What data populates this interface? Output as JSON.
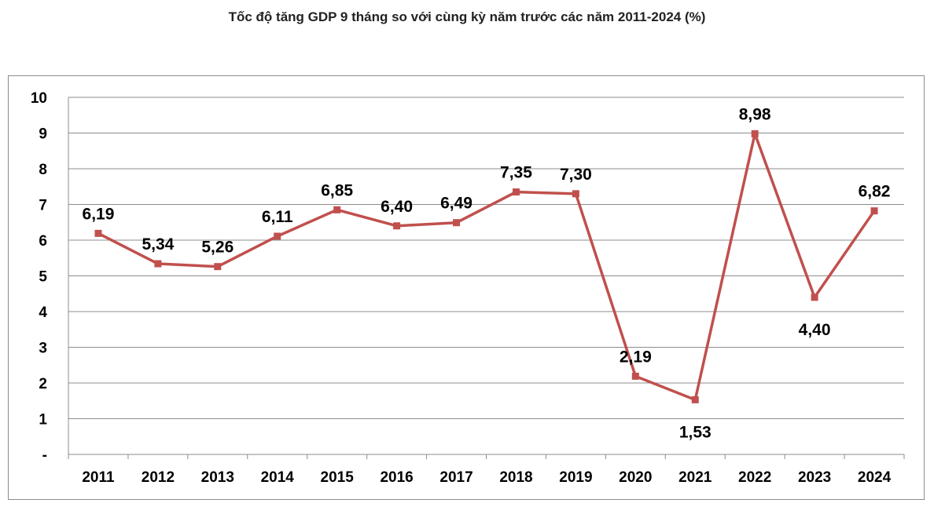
{
  "chart_data": {
    "type": "line",
    "title": "Tốc độ tăng GDP 9 tháng so với cùng kỳ năm trước các năm 2011-2024 (%)",
    "categories": [
      "2011",
      "2012",
      "2013",
      "2014",
      "2015",
      "2016",
      "2017",
      "2018",
      "2019",
      "2020",
      "2021",
      "2022",
      "2023",
      "2024"
    ],
    "series": [
      {
        "values": [
          6.19,
          5.34,
          5.26,
          6.11,
          6.85,
          6.4,
          6.49,
          7.35,
          7.3,
          2.19,
          1.53,
          8.98,
          4.4,
          6.82
        ],
        "labels": [
          "6,19",
          "5,34",
          "5,26",
          "6,11",
          "6,85",
          "6,40",
          "6,49",
          "7,35",
          "7,30",
          "2,19",
          "1,53",
          "8,98",
          "4,40",
          "6,82"
        ],
        "color": "#c0504d"
      }
    ],
    "y_ticks": [
      {
        "value": 0,
        "label": "-"
      },
      {
        "value": 1,
        "label": "1"
      },
      {
        "value": 2,
        "label": "2"
      },
      {
        "value": 3,
        "label": "3"
      },
      {
        "value": 4,
        "label": "4"
      },
      {
        "value": 5,
        "label": "5"
      },
      {
        "value": 6,
        "label": "6"
      },
      {
        "value": 7,
        "label": "7"
      },
      {
        "value": 8,
        "label": "8"
      },
      {
        "value": 9,
        "label": "9"
      },
      {
        "value": 10,
        "label": "10"
      }
    ],
    "ylim": [
      0,
      10
    ],
    "grid": true,
    "legend": "none"
  }
}
